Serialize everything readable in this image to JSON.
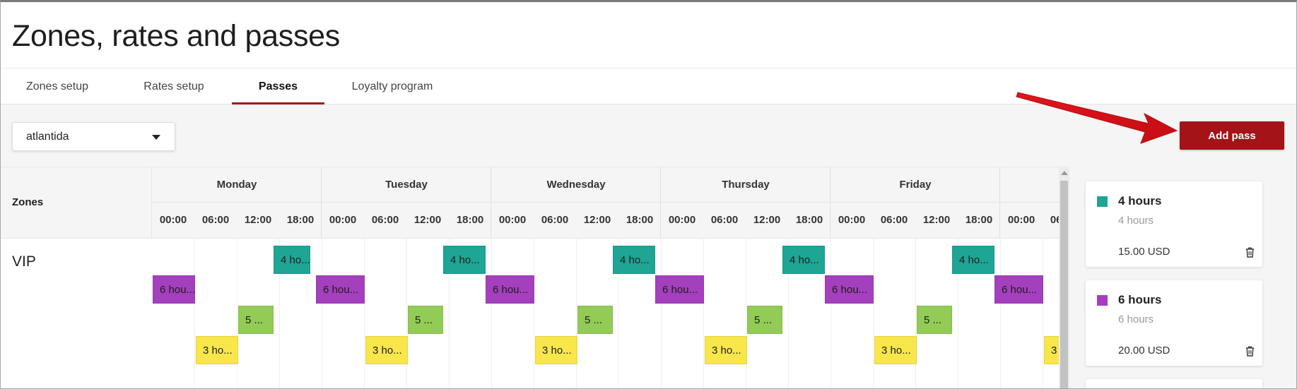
{
  "page": {
    "title": "Zones, rates and passes"
  },
  "tabs": [
    {
      "label": "Zones setup",
      "active": false
    },
    {
      "label": "Rates setup",
      "active": false
    },
    {
      "label": "Passes",
      "active": true
    },
    {
      "label": "Loyalty program",
      "active": false
    }
  ],
  "filter": {
    "selected": "atlantida"
  },
  "toolbar": {
    "add_pass_label": "Add pass"
  },
  "schedule": {
    "zones_header": "Zones",
    "days": [
      "Monday",
      "Tuesday",
      "Wednesday",
      "Thursday",
      "Friday",
      ""
    ],
    "hours": [
      "00:00",
      "06:00",
      "12:00",
      "18:00"
    ],
    "zone": "VIP"
  },
  "pass_blocks": {
    "four_hours": "4 ho...",
    "six_hours": "6 hou...",
    "five": "5 ...",
    "three_hours": "3 ho..."
  },
  "passes": [
    {
      "name": "4 hours",
      "subtitle": "4 hours",
      "price": "15.00 USD",
      "color": "#1ea594"
    },
    {
      "name": "6 hours",
      "subtitle": "6 hours",
      "price": "20.00 USD",
      "color": "#a43fbd"
    }
  ],
  "colors": {
    "brand": "#a31318",
    "teal": "#1ea594",
    "purple": "#a43fbd",
    "green": "#92cb55",
    "yellow": "#f8e64a",
    "arrow": "#e3141b"
  },
  "icons": {
    "dropdown": "chevron-down-icon",
    "delete": "trash-icon",
    "annotation": "arrow-icon"
  }
}
